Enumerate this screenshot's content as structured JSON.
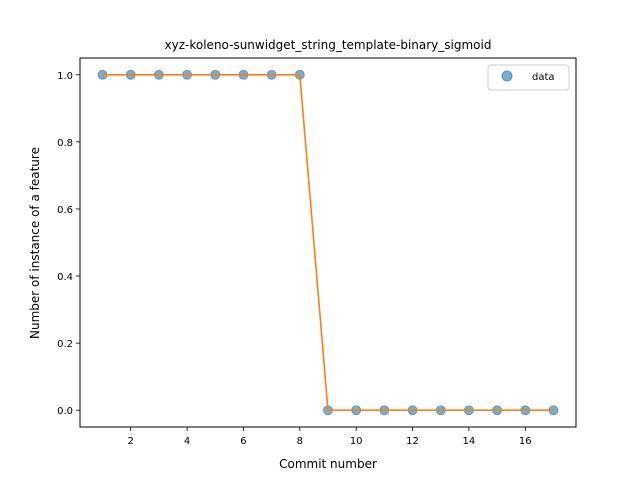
{
  "chart_data": {
    "type": "scatter",
    "title": "xyz-koleno-sunwidget_string_template-binary_sigmoid",
    "xlabel": "Commit number",
    "ylabel": "Number of instance of a feature",
    "xlim": [
      0.2,
      17.8
    ],
    "ylim": [
      -0.05,
      1.05
    ],
    "xticks": [
      2,
      4,
      6,
      8,
      10,
      12,
      14,
      16
    ],
    "yticks": [
      0.0,
      0.2,
      0.4,
      0.6,
      0.8,
      1.0
    ],
    "grid": false,
    "legend_position": "top-right",
    "series": [
      {
        "name": "data",
        "kind": "scatter",
        "color": "#1f77b4",
        "x": [
          1,
          2,
          3,
          4,
          5,
          6,
          7,
          8,
          9,
          10,
          11,
          12,
          13,
          14,
          15,
          16,
          17
        ],
        "y": [
          1,
          1,
          1,
          1,
          1,
          1,
          1,
          1,
          0,
          0,
          0,
          0,
          0,
          0,
          0,
          0,
          0
        ]
      },
      {
        "kind": "line",
        "color": "#ff7f0e",
        "x": [
          1,
          2,
          3,
          4,
          5,
          6,
          7,
          8,
          9,
          10,
          11,
          12,
          13,
          14,
          15,
          16,
          17
        ],
        "y": [
          1,
          1,
          1,
          1,
          1,
          1,
          1,
          1,
          0,
          0,
          0,
          0,
          0,
          0,
          0,
          0,
          0
        ]
      }
    ]
  }
}
